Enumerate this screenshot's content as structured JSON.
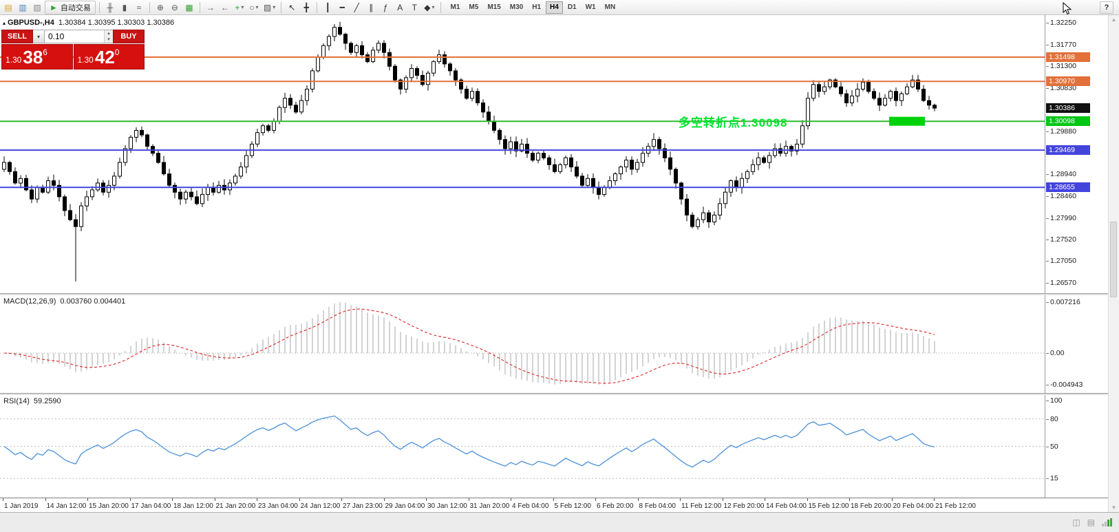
{
  "toolbar": {
    "items": [
      {
        "name": "new-order",
        "glyph": "▤",
        "color": "#d8a22e"
      },
      {
        "name": "save-profile",
        "glyph": "▥",
        "color": "#4a7ebb"
      },
      {
        "name": "profiles",
        "glyph": "▧",
        "color": "#8a8a8a"
      },
      {
        "name": "auto-trading",
        "glyph": "►",
        "color": "#2fa12f",
        "label": "自动交易"
      },
      {
        "sep": true
      },
      {
        "name": "bar-chart",
        "glyph": "╫",
        "color": "#555555"
      },
      {
        "name": "candlestick-chart",
        "glyph": "▮",
        "color": "#555555"
      },
      {
        "name": "line-chart",
        "glyph": "≈",
        "color": "#555555"
      },
      {
        "sep": true
      },
      {
        "name": "zoom-in",
        "glyph": "⊕",
        "color": "#555555"
      },
      {
        "name": "zoom-out",
        "glyph": "⊖",
        "color": "#555555"
      },
      {
        "name": "tile-windows",
        "glyph": "▦",
        "color": "#2fa12f"
      },
      {
        "sep": true
      },
      {
        "name": "auto-scroll",
        "glyph": "→",
        "color": "#555555"
      },
      {
        "name": "chart-shift",
        "glyph": "←",
        "color": "#555555"
      },
      {
        "name": "new-chart",
        "glyph": "+",
        "color": "#2fa12f",
        "dropdown": true
      },
      {
        "name": "periods",
        "glyph": "○",
        "color": "#555555",
        "dropdown": true
      },
      {
        "name": "templates",
        "glyph": "▨",
        "color": "#555555",
        "dropdown": true
      },
      {
        "sep": true
      },
      {
        "name": "cursor",
        "glyph": "↖",
        "color": "#333333"
      },
      {
        "name": "crosshair",
        "glyph": "╋",
        "color": "#333333"
      },
      {
        "sep": true
      },
      {
        "name": "vertical-line",
        "glyph": "┃",
        "color": "#333333"
      },
      {
        "name": "horizontal-line",
        "glyph": "━",
        "color": "#333333"
      },
      {
        "name": "trendline",
        "glyph": "╱",
        "color": "#333333"
      },
      {
        "name": "equidistant-channel",
        "glyph": "∥",
        "color": "#333333"
      },
      {
        "name": "fibonacci",
        "glyph": "ƒ",
        "color": "#333333"
      },
      {
        "name": "text",
        "glyph": "A",
        "color": "#333333"
      },
      {
        "name": "text-label",
        "glyph": "T",
        "color": "#333333"
      },
      {
        "name": "arrows",
        "glyph": "◆",
        "color": "#333333",
        "dropdown": true
      },
      {
        "sep": true
      }
    ],
    "timeframes": [
      {
        "label": "M1"
      },
      {
        "label": "M5"
      },
      {
        "label": "M15"
      },
      {
        "label": "M30"
      },
      {
        "label": "H1"
      },
      {
        "label": "H4",
        "active": true
      },
      {
        "label": "D1"
      },
      {
        "label": "W1"
      },
      {
        "label": "MN"
      }
    ],
    "help_label": "?"
  },
  "chart": {
    "collapse_glyph": "▴",
    "symbol": "GBPUSD-,H4",
    "ohlc_text": "1.30384 1.30395 1.30303 1.30386",
    "one_click": {
      "sell_label": "SELL",
      "buy_label": "BUY",
      "volume": "0.10",
      "dropdown_glyph": "▾",
      "spin_up": "▴",
      "spin_down": "▾",
      "sell_big": "1.30",
      "sell_pips": "38",
      "sell_sup": "6",
      "buy_big": "1.30",
      "buy_pips": "42",
      "buy_sup": "0"
    },
    "annotation": {
      "text": "多空转折点1.30098",
      "color": "#00e32c"
    },
    "highlight": {
      "price": 1.30098,
      "color": "#00d20a"
    },
    "levels": [
      {
        "price": 1.31498,
        "color": "#e2703a",
        "width": 2
      },
      {
        "price": 1.3097,
        "color": "#e2703a",
        "width": 2
      },
      {
        "price": 1.30098,
        "color": "#2eb82e",
        "width": 2
      },
      {
        "price": 1.29469,
        "color": "#4444dd",
        "width": 2
      },
      {
        "price": 1.28655,
        "color": "#4444dd",
        "width": 2
      }
    ],
    "price_axis": {
      "ticks": [
        "1.32250",
        "1.31770",
        "1.31300",
        "1.30830",
        "1.29880",
        "1.28940",
        "1.28460",
        "1.27990",
        "1.27520",
        "1.27050",
        "1.26570"
      ],
      "badges": [
        {
          "value": "1.31498",
          "bg": "#e2703a",
          "fg": "#ffffff"
        },
        {
          "value": "1.30970",
          "bg": "#e2703a",
          "fg": "#ffffff"
        },
        {
          "value": "1.30386",
          "bg": "#111111",
          "fg": "#ffffff"
        },
        {
          "value": "1.30098",
          "bg": "#00c614",
          "fg": "#ffffff"
        },
        {
          "value": "1.29469",
          "bg": "#4444dd",
          "fg": "#ffffff"
        },
        {
          "value": "1.28655",
          "bg": "#4444dd",
          "fg": "#ffffff"
        }
      ]
    },
    "range": {
      "pmax": 1.3225,
      "pmin": 1.2657
    }
  },
  "chart_data": {
    "type": "candlestick",
    "symbol": "GBPUSD-",
    "timeframe": "H4",
    "ohlc_display": {
      "open": "1.30384",
      "high": "1.30395",
      "low": "1.30303",
      "close": "1.30386"
    },
    "first_open": 1.2905,
    "closes": [
      1.292,
      1.29,
      1.2875,
      1.2885,
      1.286,
      1.284,
      1.2865,
      1.2855,
      1.288,
      1.287,
      1.2845,
      1.2815,
      1.2795,
      1.278,
      1.2825,
      1.2845,
      1.286,
      1.2875,
      1.2855,
      1.287,
      1.289,
      1.292,
      1.295,
      1.2975,
      1.299,
      1.298,
      1.2955,
      1.294,
      1.292,
      1.2895,
      1.287,
      1.2855,
      1.284,
      1.2855,
      1.2845,
      1.283,
      1.285,
      1.2865,
      1.2855,
      1.287,
      1.286,
      1.2875,
      1.289,
      1.291,
      1.2935,
      1.296,
      1.2985,
      1.3,
      1.299,
      1.301,
      1.304,
      1.306,
      1.3045,
      1.303,
      1.3055,
      1.308,
      1.312,
      1.315,
      1.3175,
      1.3195,
      1.3215,
      1.32,
      1.318,
      1.316,
      1.3175,
      1.3155,
      1.314,
      1.3165,
      1.318,
      1.316,
      1.313,
      1.31,
      1.308,
      1.3105,
      1.3125,
      1.311,
      1.309,
      1.3115,
      1.314,
      1.3155,
      1.3135,
      1.312,
      1.31,
      1.308,
      1.306,
      1.3075,
      1.305,
      1.303,
      1.301,
      1.299,
      1.297,
      1.295,
      1.2965,
      1.2945,
      1.296,
      1.294,
      1.2925,
      1.294,
      1.293,
      1.2915,
      1.29,
      1.2915,
      1.293,
      1.291,
      1.289,
      1.287,
      1.2885,
      1.2865,
      1.285,
      1.2865,
      1.288,
      1.2895,
      1.291,
      1.2925,
      1.2905,
      1.292,
      1.294,
      1.2955,
      1.297,
      1.295,
      1.293,
      1.2905,
      1.2875,
      1.284,
      1.2805,
      1.278,
      1.2795,
      1.281,
      1.279,
      1.2805,
      1.283,
      1.2855,
      1.288,
      1.2865,
      1.2885,
      1.29,
      1.2915,
      1.293,
      1.292,
      1.2935,
      1.295,
      1.294,
      1.2955,
      1.2945,
      1.296,
      1.3,
      1.306,
      1.309,
      1.3075,
      1.3085,
      1.31,
      1.3085,
      1.307,
      1.305,
      1.3065,
      1.308,
      1.3095,
      1.3075,
      1.306,
      1.3045,
      1.306,
      1.3075,
      1.3055,
      1.307,
      1.3085,
      1.31,
      1.308,
      1.3055,
      1.3045,
      1.30386
    ],
    "wick_overrides": {
      "13": {
        "low": 1.266
      },
      "60": {
        "high": 1.3222
      }
    },
    "macd": {
      "label": "MACD(12,26,9)",
      "values_text": "0.003760 0.004401",
      "params": [
        12,
        26,
        9
      ],
      "axis_top": "0.007216",
      "axis_zero": "0.00",
      "axis_bottom": "-0.004943"
    },
    "rsi": {
      "label": "RSI(14)",
      "values_text": "59.2590",
      "period": 14,
      "levels": [
        80,
        50,
        15
      ],
      "axis": [
        "100",
        "80",
        "50",
        "15"
      ]
    },
    "time_labels": [
      "1 Jan 2019",
      "14 Jan 12:00",
      "15 Jan 20:00",
      "17 Jan 04:00",
      "18 Jan 12:00",
      "21 Jan 20:00",
      "23 Jan 04:00",
      "24 Jan 12:00",
      "27 Jan 23:00",
      "29 Jan 04:00",
      "30 Jan 12:00",
      "31 Jan 20:00",
      "4 Feb 04:00",
      "5 Feb 12:00",
      "6 Feb 20:00",
      "8 Feb 04:00",
      "11 Feb 12:00",
      "12 Feb 20:00",
      "14 Feb 04:00",
      "15 Feb 12:00",
      "18 Feb 20:00",
      "20 Feb 04:00",
      "21 Feb 12:00"
    ]
  },
  "scrollbar": {
    "up": "▲",
    "down": "▼"
  },
  "status_bar": {
    "icons": [
      {
        "name": "alerts",
        "glyph": "◫"
      },
      {
        "name": "mailbox",
        "glyph": "▤"
      }
    ]
  }
}
